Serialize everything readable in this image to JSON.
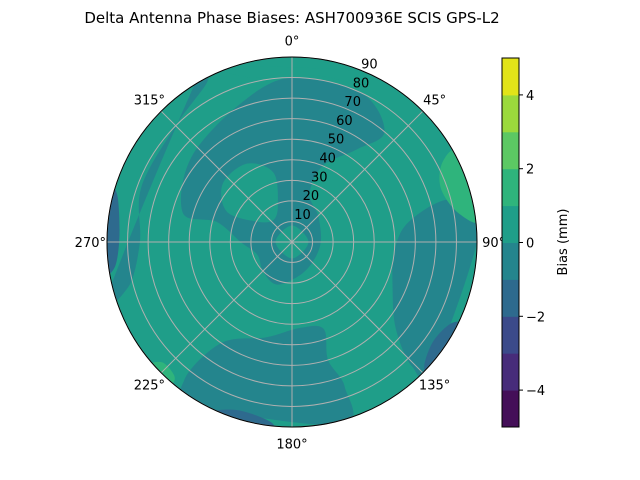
{
  "chart_data": {
    "type": "heatmap",
    "projection": "polar",
    "title": "Delta Antenna Phase Biases: ASH700936E      SCIS GPS-L2",
    "theta_zero": "north",
    "theta_direction": "clockwise",
    "theta_tick_labels": [
      "0°",
      "45°",
      "90°",
      "135°",
      "180°",
      "225°",
      "270°",
      "315°"
    ],
    "theta_ticks": [
      0,
      45,
      90,
      135,
      180,
      225,
      270,
      315
    ],
    "r_ticks": [
      10,
      20,
      30,
      40,
      50,
      60,
      70,
      80,
      90
    ],
    "r_tick_labels": [
      "10",
      "20",
      "30",
      "40",
      "50",
      "60",
      "70",
      "80",
      "90"
    ],
    "r_range": [
      0,
      90
    ],
    "grid": true,
    "background_level": [
      0,
      1
    ],
    "regions": [
      {
        "level": [
          -1,
          0
        ],
        "points": [
          [
            285,
            55
          ],
          [
            310,
            64
          ],
          [
            340,
            72
          ],
          [
            0,
            80
          ],
          [
            25,
            80
          ],
          [
            40,
            70
          ],
          [
            35,
            55
          ],
          [
            22,
            40
          ],
          [
            20,
            25
          ],
          [
            45,
            18
          ],
          [
            90,
            14
          ],
          [
            135,
            14
          ],
          [
            170,
            17
          ],
          [
            200,
            22
          ],
          [
            225,
            20
          ],
          [
            250,
            18
          ],
          [
            270,
            25
          ],
          [
            285,
            38
          ]
        ]
      },
      {
        "level": [
          0,
          1
        ],
        "points": [
          [
            300,
            20
          ],
          [
            320,
            14
          ],
          [
            340,
            20
          ],
          [
            345,
            35
          ],
          [
            330,
            44
          ],
          [
            310,
            44
          ],
          [
            295,
            35
          ]
        ]
      },
      {
        "level": [
          0,
          1
        ],
        "points": [
          [
            0,
            8
          ],
          [
            90,
            8
          ],
          [
            180,
            8
          ],
          [
            270,
            8
          ]
        ]
      },
      {
        "level": [
          0,
          1
        ],
        "points": [
          [
            340,
            91
          ],
          [
            25,
            91
          ],
          [
            30,
            84
          ],
          [
            10,
            82
          ],
          [
            345,
            83
          ]
        ]
      },
      {
        "level": [
          -1,
          0
        ],
        "points": [
          [
            80,
            58
          ],
          [
            95,
            50
          ],
          [
            115,
            54
          ],
          [
            130,
            66
          ],
          [
            136,
            84
          ],
          [
            132,
            92
          ],
          [
            85,
            92
          ],
          [
            75,
            80
          ]
        ]
      },
      {
        "level": [
          -1,
          0
        ],
        "points": [
          [
            160,
            45
          ],
          [
            175,
            42
          ],
          [
            195,
            48
          ],
          [
            215,
            60
          ],
          [
            218,
            85
          ],
          [
            210,
            92
          ],
          [
            165,
            92
          ],
          [
            160,
            75
          ],
          [
            163,
            60
          ]
        ]
      },
      {
        "level": [
          -1,
          0
        ],
        "points": [
          [
            255,
            82
          ],
          [
            270,
            74
          ],
          [
            290,
            78
          ],
          [
            315,
            80
          ],
          [
            332,
            88
          ],
          [
            330,
            92
          ],
          [
            255,
            92
          ]
        ]
      },
      {
        "level": [
          -2,
          -1
        ],
        "points": [
          [
            262,
            87
          ],
          [
            272,
            84
          ],
          [
            285,
            88
          ],
          [
            285,
            92
          ],
          [
            262,
            92
          ]
        ]
      },
      {
        "level": [
          -2,
          -1
        ],
        "points": [
          [
            117,
            87
          ],
          [
            125,
            84
          ],
          [
            133,
            88
          ],
          [
            133,
            92
          ],
          [
            117,
            92
          ]
        ]
      },
      {
        "level": [
          -2,
          -1
        ],
        "points": [
          [
            187,
            88
          ],
          [
            198,
            86
          ],
          [
            205,
            92
          ],
          [
            187,
            92
          ]
        ]
      },
      {
        "level": [
          1,
          2
        ],
        "points": [
          [
            62,
            83
          ],
          [
            70,
            77
          ],
          [
            80,
            82
          ],
          [
            83,
            92
          ],
          [
            62,
            92
          ]
        ]
      },
      {
        "level": [
          1,
          2
        ],
        "points": [
          [
            221,
            87
          ],
          [
            227,
            86
          ],
          [
            229,
            92
          ],
          [
            221,
            92
          ]
        ]
      }
    ],
    "colorbar": {
      "label": "Bias (mm)",
      "range": [
        -5,
        5
      ],
      "levels": [
        -5,
        -4,
        -3,
        -2,
        -1,
        0,
        1,
        2,
        3,
        4,
        5
      ],
      "colors": [
        "#440f58",
        "#472c7a",
        "#3b4a8a",
        "#2e6a8e",
        "#24858d",
        "#1f9e89",
        "#2fb47c",
        "#5cc863",
        "#9bd93c",
        "#e2e419"
      ],
      "ticks": [
        -4,
        -2,
        0,
        2,
        4
      ],
      "tick_labels": [
        "−4",
        "−2",
        "0",
        "2",
        "4"
      ]
    }
  }
}
